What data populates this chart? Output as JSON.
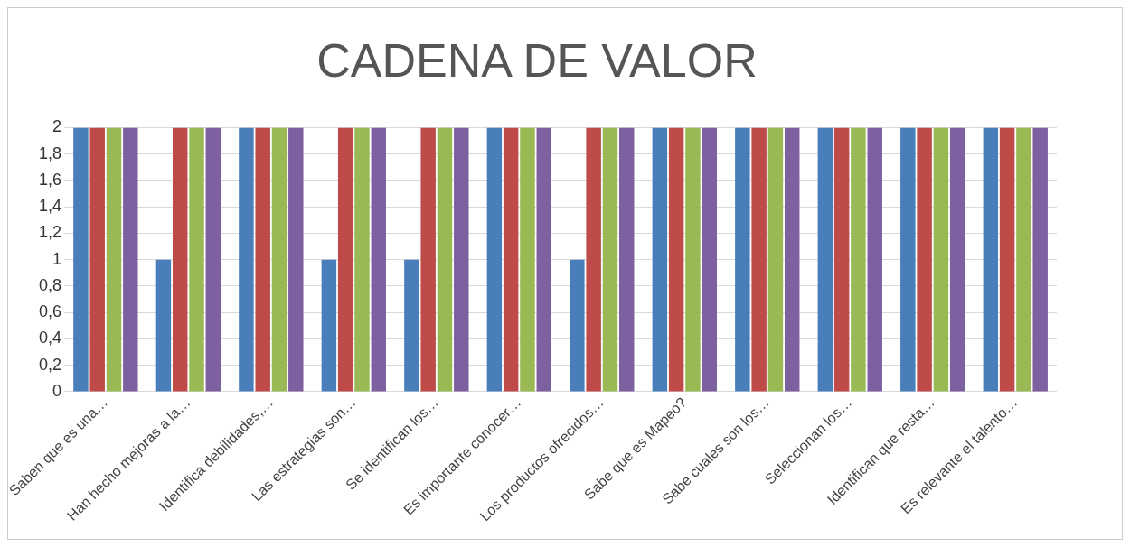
{
  "chart_data": {
    "type": "bar",
    "title": "CADENA DE VALOR",
    "categories": [
      "Saben que es una…",
      "Han hecho mejoras a la…",
      "Identifica debilidades,…",
      "Las estrategias son…",
      "Se identifican los…",
      "Es importante conocer…",
      "Los productos ofrecidos…",
      "Sabe que es Mapeo?",
      "Sabe cuales son los…",
      "Seleccionan los…",
      "Identifican que resta…",
      "Es relevante el talento…"
    ],
    "series": [
      {
        "color": "#4a7ebb",
        "values": [
          2,
          1,
          2,
          1,
          1,
          2,
          1,
          2,
          2,
          2,
          2,
          2
        ]
      },
      {
        "color": "#be4b48",
        "values": [
          2,
          2,
          2,
          2,
          2,
          2,
          2,
          2,
          2,
          2,
          2,
          2
        ]
      },
      {
        "color": "#98b954",
        "values": [
          2,
          2,
          2,
          2,
          2,
          2,
          2,
          2,
          2,
          2,
          2,
          2
        ]
      },
      {
        "color": "#7d60a0",
        "values": [
          2,
          2,
          2,
          2,
          2,
          2,
          2,
          2,
          2,
          2,
          2,
          2
        ]
      }
    ],
    "ylim": [
      0,
      2
    ],
    "yticks": [
      0,
      {
        "value": 0.2,
        "label": "0,2"
      },
      {
        "value": 0.4,
        "label": "0,4"
      },
      {
        "value": 0.6,
        "label": "0,6"
      },
      {
        "value": 0.8,
        "label": "0,8"
      },
      1,
      {
        "value": 1.2,
        "label": "1,2"
      },
      {
        "value": 1.4,
        "label": "1,4"
      },
      {
        "value": 1.6,
        "label": "1,6"
      },
      {
        "value": 1.8,
        "label": "1,8"
      },
      2
    ],
    "grid": "y"
  }
}
